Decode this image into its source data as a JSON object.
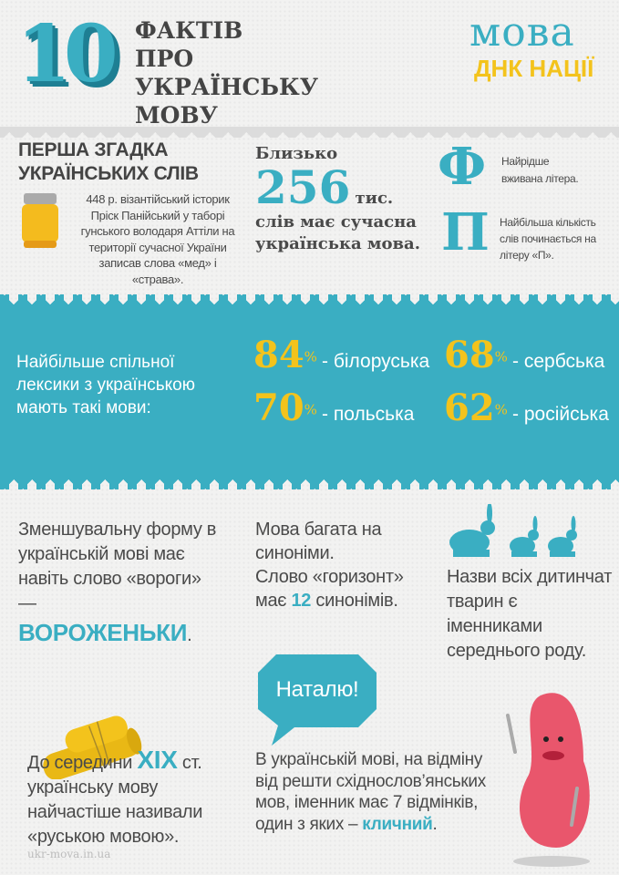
{
  "header": {
    "number": "10",
    "title": "ФАКТІВ ПРО УКРАЇНСЬКУ МОВУ",
    "logo_top": "мова",
    "logo_bottom": "ДНК НАЦІЇ"
  },
  "fact1": {
    "heading": "ПЕРША ЗГАДКА УКРАЇНСЬКИХ СЛІВ",
    "text": "448 р. візантійський історик Пріск Панійський у таборі гунського володаря Аттіли на території сучасної України записав слова «мед» і «страва»."
  },
  "fact2": {
    "pre": "Близько",
    "number": "256",
    "unit": "тис.",
    "post": "слів має сучасна українська мова."
  },
  "fact3": {
    "letter": "Ф",
    "text": "Найрідше вживана літера."
  },
  "fact4": {
    "letter": "П",
    "text": "Найбільша кількість слів починається на літеру «П»."
  },
  "fact5": {
    "text": "Найбільше спільної лексики з українською мають такі мови:",
    "items": [
      {
        "value": "84",
        "sign": "%",
        "label": "- білоруська"
      },
      {
        "value": "68",
        "sign": "%",
        "label": "- сербська"
      },
      {
        "value": "70",
        "sign": "%",
        "label": "- польська"
      },
      {
        "value": "62",
        "sign": "%",
        "label": "- російська"
      }
    ]
  },
  "fact6": {
    "text": "Зменшувальну форму в українській мові має навіть слово «вороги» —",
    "highlight": "ВОРОЖЕНЬКИ",
    "end": "."
  },
  "fact7": {
    "line1": "Мова багата на синоніми.",
    "pre": "Слово «горизонт» має",
    "number": "12",
    "post": "синонімів."
  },
  "fact8": {
    "text": "Назви всіх дитинчат тварин є іменниками середнього роду."
  },
  "fact9": {
    "pre": "До середини",
    "highlight": "XIX",
    "post": "ст. українську мову найчастіше називали «руською мовою»."
  },
  "fact10": {
    "bubble": "Наталю!",
    "text": "В українській мові, на відміну від решти східнослов’янських мов, іменник має 7 відмінків, один з яких –",
    "highlight": "кличний",
    "end": "."
  },
  "footer": {
    "source": "ukr-mova.in.ua"
  },
  "colors": {
    "teal": "#3aaec2",
    "yellow": "#f3c31c",
    "text": "#4a4a4a",
    "pink": "#e9566c"
  }
}
